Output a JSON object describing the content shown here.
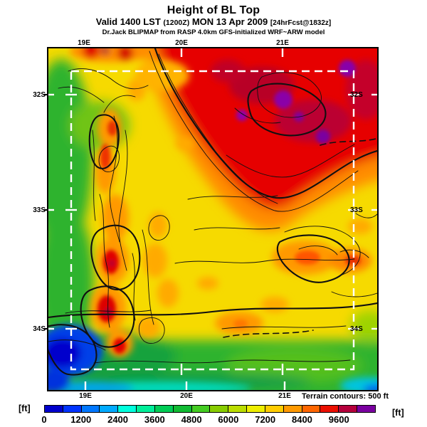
{
  "title": {
    "line1": "Height of BL Top",
    "line2": {
      "valid": "Valid 1400 LST",
      "utc": "(1200Z)",
      "date": "MON 13 Apr 2009",
      "fcst": "[24hrFcst@1832z]"
    },
    "line3": "Dr.Jack BLIPMAP from RASP 4.0km GFS-initialized WRF~ARW model"
  },
  "map": {
    "lon_labels": [
      "19E",
      "20E",
      "21E"
    ],
    "lat_labels": [
      "32S",
      "33S",
      "34S"
    ]
  },
  "footer": {
    "terrain_note": "Terrain contours: 500 ft"
  },
  "colorbar": {
    "unit_left": "[ft]",
    "unit_right": "[ft]",
    "tick_labels": [
      "0",
      "1200",
      "2400",
      "3600",
      "4800",
      "6000",
      "7200",
      "8400",
      "9600"
    ],
    "colors": [
      "#0000CC",
      "#0033FF",
      "#0077FF",
      "#00AAFF",
      "#00FFDD",
      "#00EE99",
      "#00CC55",
      "#11BB33",
      "#44CC22",
      "#88CC00",
      "#BBDD00",
      "#EEEE00",
      "#FFCC00",
      "#FF9900",
      "#FF6600",
      "#EB0F00",
      "#B5003C",
      "#7A00A0"
    ]
  },
  "chart_data": {
    "type": "heatmap",
    "title": "Height of BL Top",
    "valid_line": "Valid 1400 LST (1200Z) MON 13 Apr 2009 [24hrFcst@1832z]",
    "model_line": "Dr.Jack BLIPMAP from RASP 4.0km GFS-initialized WRF~ARW model",
    "x_tick_labels": [
      "19E",
      "20E",
      "21E"
    ],
    "y_tick_labels": [
      "32S",
      "33S",
      "34S"
    ],
    "colorbar_unit": "[ft]",
    "colorbar_tick_values": [
      0,
      1200,
      2400,
      3600,
      4800,
      6000,
      7200,
      8400,
      9600
    ],
    "colorbar_range_ft": [
      0,
      10800
    ],
    "colorbar_step_ft": 600,
    "terrain_contour_interval": "500 ft",
    "legend_position": "bottom"
  }
}
